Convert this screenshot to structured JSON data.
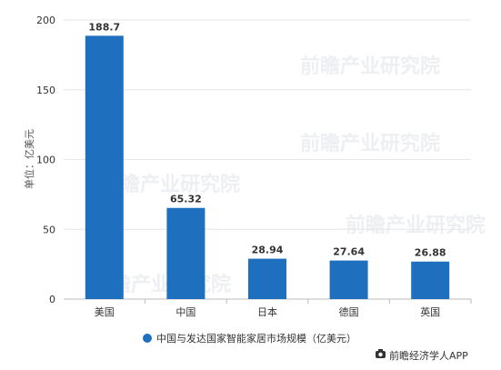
{
  "chart_data": {
    "type": "bar",
    "categories": [
      "美国",
      "中国",
      "日本",
      "德国",
      "英国"
    ],
    "series": [
      {
        "name": "中国与发达国家智能家居市场规模（亿美元）",
        "values": [
          188.7,
          65.32,
          28.94,
          27.64,
          26.88
        ]
      }
    ],
    "data_labels": [
      "188.7",
      "65.32",
      "28.94",
      "27.64",
      "26.88"
    ],
    "title": "",
    "xlabel": "",
    "ylabel": "单位：亿美元",
    "ylim": [
      0,
      200
    ],
    "yticks": [
      "0",
      "50",
      "100",
      "150",
      "200"
    ],
    "grid": true,
    "legend_position": "bottom",
    "bar_color": "#1f6fbf"
  },
  "watermark": "前瞻产业研究院",
  "footer": {
    "icon": "camera-icon",
    "text": "前瞻经济学人APP"
  }
}
